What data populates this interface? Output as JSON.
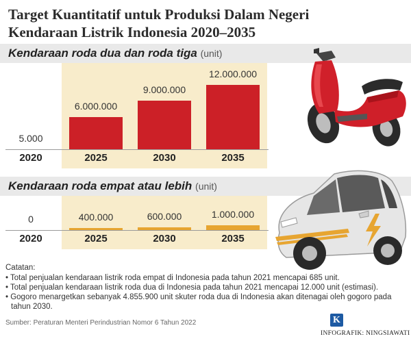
{
  "header": {
    "title_line1": "Target Kuantitatif untuk Produksi Dalam Negeri",
    "title_line2": "Kendaraan Listrik Indonesia 2020–2035"
  },
  "chart_data": [
    {
      "type": "bar",
      "title": "Kendaraan roda dua dan roda tiga",
      "unit": "(unit)",
      "categories": [
        "2020",
        "2025",
        "2030",
        "2035"
      ],
      "values": [
        5000,
        6000000,
        9000000,
        12000000
      ],
      "value_labels": [
        "5.000",
        "6.000.000",
        "9.000.000",
        "12.000.000"
      ],
      "color": "#cc2027",
      "highlight_color": "#f8eccb"
    },
    {
      "type": "bar",
      "title": "Kendaraan roda empat atau lebih",
      "unit": "(unit)",
      "categories": [
        "2020",
        "2025",
        "2030",
        "2035"
      ],
      "values": [
        0,
        400000,
        600000,
        1000000
      ],
      "value_labels": [
        "0",
        "400.000",
        "600.000",
        "1.000.000"
      ],
      "color": "#e7a531",
      "highlight_color": "#f8eccb"
    }
  ],
  "notes": {
    "heading": "Catatan:",
    "items": [
      "• Total penjualan kendaraan listrik roda empat di Indonesia pada tahun 2021 mencapai 685 unit.",
      "• Total penjualan kendaraan listrik roda dua di Indonesia pada tahun 2021 mencapai 12.000 unit (estimasi).",
      "• Gogoro menargetkan sebanyak 4.855.900 unit skuter roda dua di Indonesia akan ditenagai oleh gogoro pada tahun 2030."
    ]
  },
  "footer": {
    "source": "Sumber: Peraturan Menteri Perindustrian Nomor 6 Tahun 2022",
    "logo_letter": "K",
    "credit": "INFOGRAFIK: NINGSIAWATI"
  },
  "illustrations": {
    "motorcycle": "red-scooter-icon",
    "car": "electric-car-icon"
  }
}
